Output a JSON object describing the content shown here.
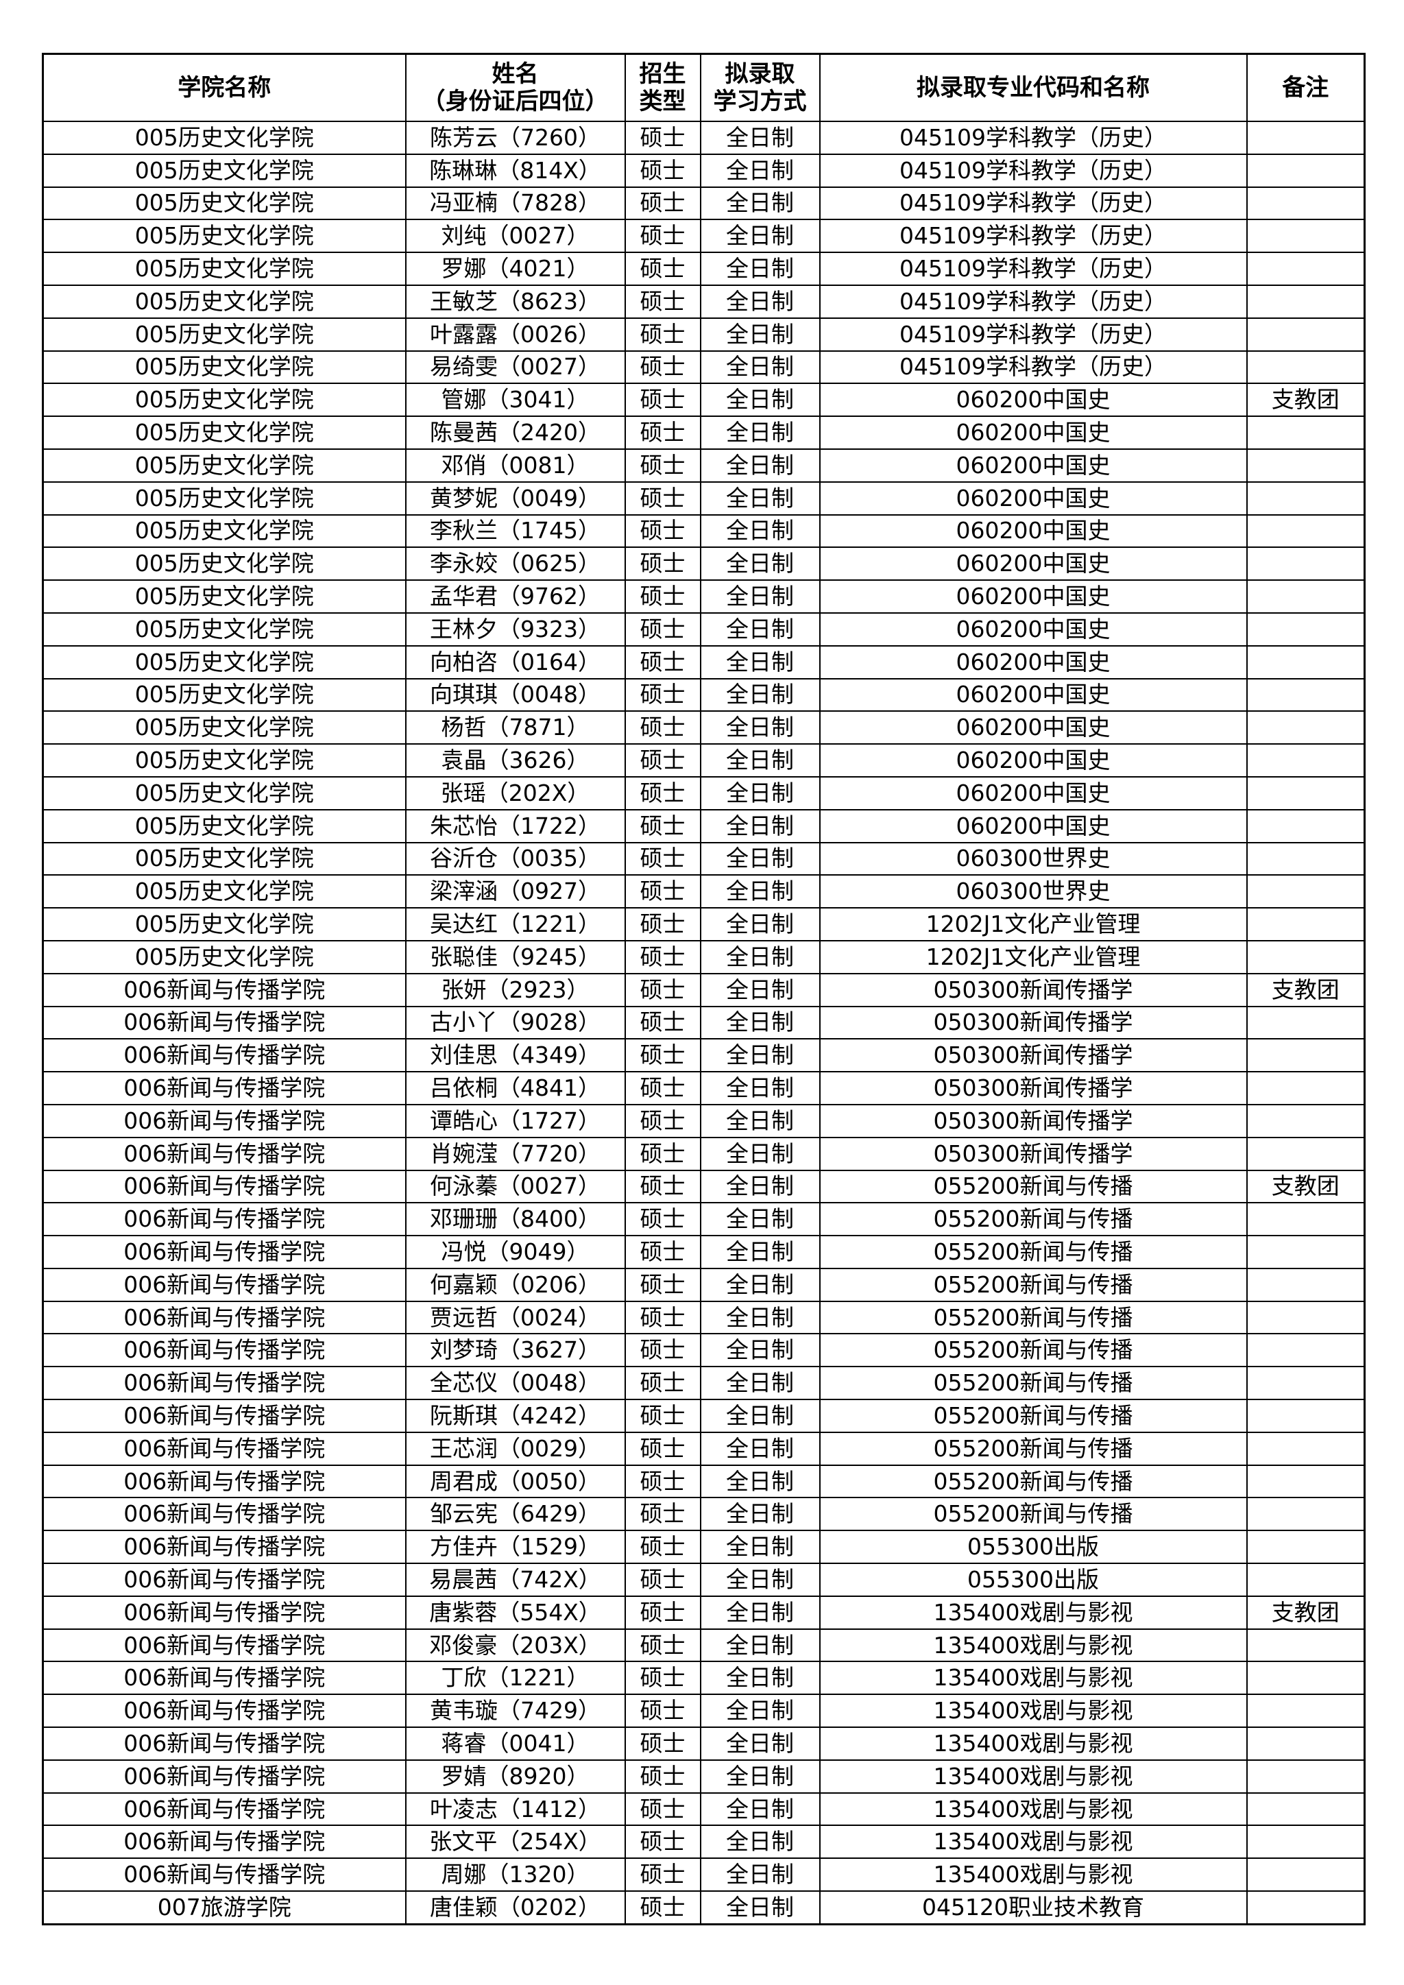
{
  "headers": {
    "college": "学院名称",
    "name_line1": "姓名",
    "name_line2": "（身份证后四位）",
    "type_line1": "招生",
    "type_line2": "类型",
    "mode_line1": "拟录取",
    "mode_line2": "学习方式",
    "major": "拟录取专业代码和名称",
    "note": "备注"
  },
  "rows": [
    [
      "005历史文化学院",
      "陈芳云（7260）",
      "硕士",
      "全日制",
      "045109学科教学（历史）",
      ""
    ],
    [
      "005历史文化学院",
      "陈琳琳（814X）",
      "硕士",
      "全日制",
      "045109学科教学（历史）",
      ""
    ],
    [
      "005历史文化学院",
      "冯亚楠（7828）",
      "硕士",
      "全日制",
      "045109学科教学（历史）",
      ""
    ],
    [
      "005历史文化学院",
      "刘纯（0027）",
      "硕士",
      "全日制",
      "045109学科教学（历史）",
      ""
    ],
    [
      "005历史文化学院",
      "罗娜（4021）",
      "硕士",
      "全日制",
      "045109学科教学（历史）",
      ""
    ],
    [
      "005历史文化学院",
      "王敏芝（8623）",
      "硕士",
      "全日制",
      "045109学科教学（历史）",
      ""
    ],
    [
      "005历史文化学院",
      "叶露露（0026）",
      "硕士",
      "全日制",
      "045109学科教学（历史）",
      ""
    ],
    [
      "005历史文化学院",
      "易绮雯（0027）",
      "硕士",
      "全日制",
      "045109学科教学（历史）",
      ""
    ],
    [
      "005历史文化学院",
      "管娜（3041）",
      "硕士",
      "全日制",
      "060200中国史",
      "支教团"
    ],
    [
      "005历史文化学院",
      "陈曼茜（2420）",
      "硕士",
      "全日制",
      "060200中国史",
      ""
    ],
    [
      "005历史文化学院",
      "邓俏（0081）",
      "硕士",
      "全日制",
      "060200中国史",
      ""
    ],
    [
      "005历史文化学院",
      "黄梦妮（0049）",
      "硕士",
      "全日制",
      "060200中国史",
      ""
    ],
    [
      "005历史文化学院",
      "李秋兰（1745）",
      "硕士",
      "全日制",
      "060200中国史",
      ""
    ],
    [
      "005历史文化学院",
      "李永姣（0625）",
      "硕士",
      "全日制",
      "060200中国史",
      ""
    ],
    [
      "005历史文化学院",
      "孟华君（9762）",
      "硕士",
      "全日制",
      "060200中国史",
      ""
    ],
    [
      "005历史文化学院",
      "王林夕（9323）",
      "硕士",
      "全日制",
      "060200中国史",
      ""
    ],
    [
      "005历史文化学院",
      "向柏咨（0164）",
      "硕士",
      "全日制",
      "060200中国史",
      ""
    ],
    [
      "005历史文化学院",
      "向琪琪（0048）",
      "硕士",
      "全日制",
      "060200中国史",
      ""
    ],
    [
      "005历史文化学院",
      "杨哲（7871）",
      "硕士",
      "全日制",
      "060200中国史",
      ""
    ],
    [
      "005历史文化学院",
      "袁晶（3626）",
      "硕士",
      "全日制",
      "060200中国史",
      ""
    ],
    [
      "005历史文化学院",
      "张瑶（202X）",
      "硕士",
      "全日制",
      "060200中国史",
      ""
    ],
    [
      "005历史文化学院",
      "朱芯怡（1722）",
      "硕士",
      "全日制",
      "060200中国史",
      ""
    ],
    [
      "005历史文化学院",
      "谷沂仓（0035）",
      "硕士",
      "全日制",
      "060300世界史",
      ""
    ],
    [
      "005历史文化学院",
      "梁滓涵（0927）",
      "硕士",
      "全日制",
      "060300世界史",
      ""
    ],
    [
      "005历史文化学院",
      "吴达红（1221）",
      "硕士",
      "全日制",
      "1202J1文化产业管理",
      ""
    ],
    [
      "005历史文化学院",
      "张聪佳（9245）",
      "硕士",
      "全日制",
      "1202J1文化产业管理",
      ""
    ],
    [
      "006新闻与传播学院",
      "张妍（2923）",
      "硕士",
      "全日制",
      "050300新闻传播学",
      "支教团"
    ],
    [
      "006新闻与传播学院",
      "古小丫（9028）",
      "硕士",
      "全日制",
      "050300新闻传播学",
      ""
    ],
    [
      "006新闻与传播学院",
      "刘佳思（4349）",
      "硕士",
      "全日制",
      "050300新闻传播学",
      ""
    ],
    [
      "006新闻与传播学院",
      "吕依桐（4841）",
      "硕士",
      "全日制",
      "050300新闻传播学",
      ""
    ],
    [
      "006新闻与传播学院",
      "谭皓心（1727）",
      "硕士",
      "全日制",
      "050300新闻传播学",
      ""
    ],
    [
      "006新闻与传播学院",
      "肖婉滢（7720）",
      "硕士",
      "全日制",
      "050300新闻传播学",
      ""
    ],
    [
      "006新闻与传播学院",
      "何泳蓁（0027）",
      "硕士",
      "全日制",
      "055200新闻与传播",
      "支教团"
    ],
    [
      "006新闻与传播学院",
      "邓珊珊（8400）",
      "硕士",
      "全日制",
      "055200新闻与传播",
      ""
    ],
    [
      "006新闻与传播学院",
      "冯悦（9049）",
      "硕士",
      "全日制",
      "055200新闻与传播",
      ""
    ],
    [
      "006新闻与传播学院",
      "何嘉颖（0206）",
      "硕士",
      "全日制",
      "055200新闻与传播",
      ""
    ],
    [
      "006新闻与传播学院",
      "贾远哲（0024）",
      "硕士",
      "全日制",
      "055200新闻与传播",
      ""
    ],
    [
      "006新闻与传播学院",
      "刘梦琦（3627）",
      "硕士",
      "全日制",
      "055200新闻与传播",
      ""
    ],
    [
      "006新闻与传播学院",
      "全芯仪（0048）",
      "硕士",
      "全日制",
      "055200新闻与传播",
      ""
    ],
    [
      "006新闻与传播学院",
      "阮斯琪（4242）",
      "硕士",
      "全日制",
      "055200新闻与传播",
      ""
    ],
    [
      "006新闻与传播学院",
      "王芯润（0029）",
      "硕士",
      "全日制",
      "055200新闻与传播",
      ""
    ],
    [
      "006新闻与传播学院",
      "周君成（0050）",
      "硕士",
      "全日制",
      "055200新闻与传播",
      ""
    ],
    [
      "006新闻与传播学院",
      "邹云宪（6429）",
      "硕士",
      "全日制",
      "055200新闻与传播",
      ""
    ],
    [
      "006新闻与传播学院",
      "方佳卉（1529）",
      "硕士",
      "全日制",
      "055300出版",
      ""
    ],
    [
      "006新闻与传播学院",
      "易晨茜（742X）",
      "硕士",
      "全日制",
      "055300出版",
      ""
    ],
    [
      "006新闻与传播学院",
      "唐紫蓉（554X）",
      "硕士",
      "全日制",
      "135400戏剧与影视",
      "支教团"
    ],
    [
      "006新闻与传播学院",
      "邓俊豪（203X）",
      "硕士",
      "全日制",
      "135400戏剧与影视",
      ""
    ],
    [
      "006新闻与传播学院",
      "丁欣（1221）",
      "硕士",
      "全日制",
      "135400戏剧与影视",
      ""
    ],
    [
      "006新闻与传播学院",
      "黄韦璇（7429）",
      "硕士",
      "全日制",
      "135400戏剧与影视",
      ""
    ],
    [
      "006新闻与传播学院",
      "蒋睿（0041）",
      "硕士",
      "全日制",
      "135400戏剧与影视",
      ""
    ],
    [
      "006新闻与传播学院",
      "罗婧（8920）",
      "硕士",
      "全日制",
      "135400戏剧与影视",
      ""
    ],
    [
      "006新闻与传播学院",
      "叶凌志（1412）",
      "硕士",
      "全日制",
      "135400戏剧与影视",
      ""
    ],
    [
      "006新闻与传播学院",
      "张文平（254X）",
      "硕士",
      "全日制",
      "135400戏剧与影视",
      ""
    ],
    [
      "006新闻与传播学院",
      "周娜（1320）",
      "硕士",
      "全日制",
      "135400戏剧与影视",
      ""
    ],
    [
      "007旅游学院",
      "唐佳颖（0202）",
      "硕士",
      "全日制",
      "045120职业技术教育",
      ""
    ]
  ]
}
